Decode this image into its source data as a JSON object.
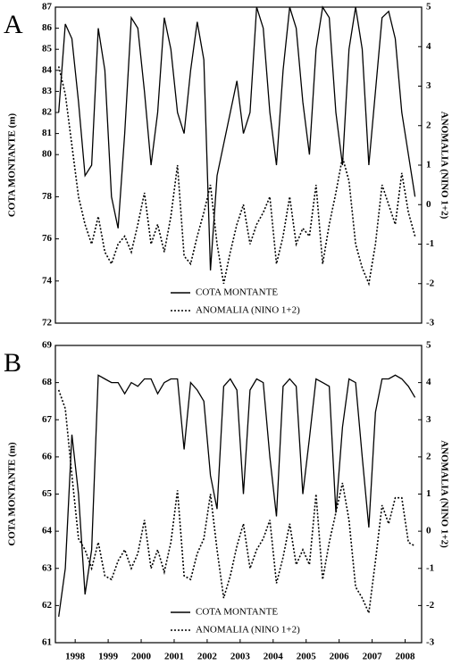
{
  "chart_data": [
    {
      "type": "line",
      "panel_label": "A",
      "y_label": "COTA MONTANTE (m)",
      "y2_label": "ANOMALIA (NINO 1+2)",
      "legend": "lower center",
      "xlim": [
        1997.4,
        2008.5
      ],
      "ylim": [
        72,
        87
      ],
      "yticks": [
        72,
        74,
        76,
        78,
        80,
        81,
        82,
        83,
        84,
        85,
        86,
        87
      ],
      "y2lim": [
        -3,
        5
      ],
      "y2ticks": [
        -3,
        -2,
        -1,
        0,
        1,
        2,
        3,
        4,
        5
      ],
      "x": [
        1997.5,
        1997.7,
        1997.9,
        1998.1,
        1998.3,
        1998.5,
        1998.7,
        1998.9,
        1999.1,
        1999.3,
        1999.5,
        1999.7,
        1999.9,
        2000.1,
        2000.3,
        2000.5,
        2000.7,
        2000.9,
        2001.1,
        2001.3,
        2001.5,
        2001.7,
        2001.9,
        2002.1,
        2002.3,
        2002.5,
        2002.7,
        2002.9,
        2003.1,
        2003.3,
        2003.5,
        2003.7,
        2003.9,
        2004.1,
        2004.3,
        2004.5,
        2004.7,
        2004.9,
        2005.1,
        2005.3,
        2005.5,
        2005.7,
        2005.9,
        2006.1,
        2006.3,
        2006.5,
        2006.7,
        2006.9,
        2007.1,
        2007.3,
        2007.5,
        2007.7,
        2007.9,
        2008.1,
        2008.3
      ],
      "series": [
        {
          "name": "COTA MONTANTE",
          "color": "#000000",
          "style": "solid",
          "values": [
            82,
            86.2,
            85.5,
            82.5,
            79,
            79.5,
            86,
            84,
            78,
            76.5,
            81,
            86.5,
            86,
            83,
            79.5,
            82,
            86.5,
            85,
            82,
            81,
            84,
            86.3,
            84.5,
            74.5,
            79,
            80.5,
            82,
            83.5,
            81,
            82,
            87,
            86,
            82,
            79.5,
            84,
            87,
            86,
            82.5,
            80,
            85,
            87,
            86.5,
            82,
            79.5,
            85,
            87,
            85,
            79.5,
            83,
            86.5,
            86.8,
            85.5,
            82,
            80,
            78
          ]
        },
        {
          "name": "ANOMALIA (NINO 1+2)",
          "color": "#000000",
          "style": "dotted",
          "axis": "y2",
          "values": [
            3.5,
            2.8,
            1.5,
            0.2,
            -0.5,
            -1.0,
            -0.3,
            -1.2,
            -1.5,
            -1.0,
            -0.8,
            -1.2,
            -0.5,
            0.3,
            -1.0,
            -0.5,
            -1.2,
            -0.3,
            1.0,
            -1.3,
            -1.5,
            -0.8,
            -0.2,
            0.5,
            -1.0,
            -2.0,
            -1.2,
            -0.5,
            0.0,
            -1.0,
            -0.5,
            -0.2,
            0.2,
            -1.5,
            -0.8,
            0.2,
            -1.0,
            -0.6,
            -0.8,
            0.5,
            -1.5,
            -0.5,
            0.3,
            1.2,
            0.6,
            -1.0,
            -1.6,
            -2.0,
            -1.0,
            0.5,
            0.0,
            -0.5,
            0.8,
            -0.2,
            -0.8
          ]
        }
      ]
    },
    {
      "type": "line",
      "panel_label": "B",
      "y_label": "COTA MONTANTE (m)",
      "y2_label": "ANOMALIA (NINO 1+2)",
      "legend": "lower center",
      "xlim": [
        1997.4,
        2008.5
      ],
      "xticks": [
        1998,
        1999,
        2000,
        2001,
        2002,
        2003,
        2004,
        2005,
        2006,
        2007,
        2008
      ],
      "ylim": [
        61,
        69
      ],
      "yticks": [
        61,
        62,
        63,
        64,
        65,
        66,
        67,
        68,
        69
      ],
      "y2lim": [
        -3,
        5
      ],
      "y2ticks": [
        -3,
        -2,
        -1,
        0,
        1,
        2,
        3,
        4,
        5
      ],
      "x": [
        1997.5,
        1997.7,
        1997.9,
        1998.1,
        1998.3,
        1998.5,
        1998.7,
        1998.9,
        1999.1,
        1999.3,
        1999.5,
        1999.7,
        1999.9,
        2000.1,
        2000.3,
        2000.5,
        2000.7,
        2000.9,
        2001.1,
        2001.3,
        2001.5,
        2001.7,
        2001.9,
        2002.1,
        2002.3,
        2002.5,
        2002.7,
        2002.9,
        2003.1,
        2003.3,
        2003.5,
        2003.7,
        2003.9,
        2004.1,
        2004.3,
        2004.5,
        2004.7,
        2004.9,
        2005.1,
        2005.3,
        2005.5,
        2005.7,
        2005.9,
        2006.1,
        2006.3,
        2006.5,
        2006.7,
        2006.9,
        2007.1,
        2007.3,
        2007.5,
        2007.7,
        2007.9,
        2008.1,
        2008.3
      ],
      "series": [
        {
          "name": "COTA MONTANTE",
          "color": "#000000",
          "style": "solid",
          "values": [
            61.7,
            63,
            66.6,
            65,
            62.3,
            63.5,
            68.2,
            68.1,
            68,
            68,
            67.7,
            68,
            67.9,
            68.1,
            68.1,
            67.7,
            68,
            68.1,
            68.1,
            66.2,
            68.0,
            67.8,
            67.5,
            65.5,
            64.6,
            67.9,
            68.1,
            67.8,
            65,
            67.8,
            68.1,
            68,
            66,
            64.4,
            67.9,
            68.1,
            67.9,
            65,
            66.5,
            68.1,
            68,
            67.9,
            64.5,
            66.8,
            68.1,
            68.0,
            66,
            64.1,
            67.2,
            68.1,
            68.1,
            68.2,
            68.1,
            67.9,
            67.6
          ]
        },
        {
          "name": "ANOMALIA (NINO 1+2)",
          "color": "#000000",
          "style": "dotted",
          "axis": "y2",
          "values": [
            3.8,
            3.3,
            1.5,
            -0.2,
            -0.5,
            -1.0,
            -0.3,
            -1.2,
            -1.3,
            -0.8,
            -0.5,
            -1.0,
            -0.6,
            0.3,
            -1.0,
            -0.5,
            -1.1,
            -0.3,
            1.1,
            -1.2,
            -1.3,
            -0.6,
            -0.2,
            1.0,
            -0.5,
            -1.8,
            -1.2,
            -0.4,
            0.2,
            -1.0,
            -0.5,
            -0.2,
            0.3,
            -1.4,
            -0.7,
            0.2,
            -0.9,
            -0.5,
            -0.9,
            1.0,
            -1.3,
            -0.3,
            0.5,
            1.3,
            0.3,
            -1.5,
            -1.8,
            -2.2,
            -0.8,
            0.7,
            0.2,
            0.9,
            0.9,
            -0.3,
            -0.4
          ]
        }
      ]
    }
  ]
}
